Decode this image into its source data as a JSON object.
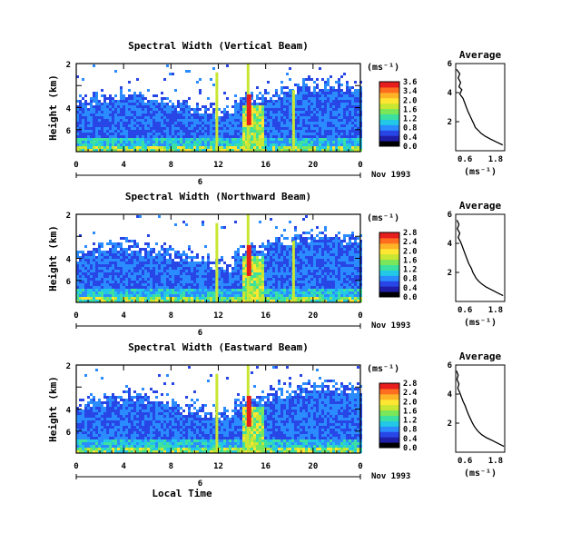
{
  "chart_data": [
    {
      "type": "heatmap",
      "title": "Spectral Width (Vertical Beam)",
      "ylabel": "Height (km)",
      "xlim": [
        0,
        24
      ],
      "ylim": [
        0,
        8
      ],
      "x_ticks": [
        "0",
        "4",
        "8",
        "12",
        "16",
        "20",
        "0"
      ],
      "y_ticks": [
        "2",
        "4",
        "6"
      ],
      "date_marker": "6",
      "date_label": "Nov 1993",
      "colorbar": {
        "unit": "(ms⁻¹)",
        "range": [
          0.0,
          3.6
        ],
        "ticks": [
          "3.6",
          "3.4",
          "2.0",
          "1.6",
          "1.2",
          "0.8",
          "0.4",
          "0.0"
        ]
      },
      "average_profile": {
        "title": "Average",
        "xlabel": "(ms⁻¹)",
        "xlim": [
          0.6,
          1.8
        ],
        "ylim": [
          0,
          6
        ],
        "x_ticks": [
          "0.6",
          "1.8"
        ],
        "y_ticks": [
          "2",
          "4",
          "6"
        ],
        "x": [
          0.62,
          0.7,
          0.66,
          0.72,
          0.68,
          0.75,
          0.7,
          0.78,
          0.82,
          0.86,
          0.9,
          0.95,
          1.0,
          1.05,
          1.08,
          1.15,
          1.22,
          1.32,
          1.45,
          1.6,
          1.75
        ],
        "y": [
          5.6,
          5.3,
          5.0,
          4.7,
          4.4,
          4.2,
          3.9,
          3.6,
          3.3,
          3.0,
          2.7,
          2.4,
          2.1,
          1.8,
          1.6,
          1.4,
          1.2,
          1.0,
          0.8,
          0.6,
          0.4
        ]
      }
    },
    {
      "type": "heatmap",
      "title": "Spectral Width (Northward Beam)",
      "ylabel": "Height (km)",
      "xlim": [
        0,
        24
      ],
      "ylim": [
        0,
        8
      ],
      "x_ticks": [
        "0",
        "4",
        "8",
        "12",
        "16",
        "20",
        "0"
      ],
      "y_ticks": [
        "2",
        "4",
        "6"
      ],
      "date_marker": "6",
      "date_label": "Nov 1993",
      "colorbar": {
        "unit": "(ms⁻¹)",
        "range": [
          0.0,
          2.8
        ],
        "ticks": [
          "2.8",
          "2.4",
          "2.0",
          "1.6",
          "1.2",
          "0.8",
          "0.4",
          "0.0"
        ]
      },
      "average_profile": {
        "title": "Average",
        "xlabel": "(ms⁻¹)",
        "xlim": [
          0.6,
          1.8
        ],
        "ylim": [
          0,
          6
        ],
        "x_ticks": [
          "0.6",
          "1.8"
        ],
        "y_ticks": [
          "2",
          "4",
          "6"
        ],
        "x": [
          0.63,
          0.68,
          0.64,
          0.7,
          0.66,
          0.72,
          0.76,
          0.8,
          0.84,
          0.88,
          0.92,
          0.98,
          1.02,
          1.06,
          1.1,
          1.16,
          1.24,
          1.34,
          1.48,
          1.62,
          1.76
        ],
        "y": [
          5.6,
          5.3,
          5.0,
          4.7,
          4.4,
          4.1,
          3.8,
          3.5,
          3.2,
          2.9,
          2.6,
          2.3,
          2.0,
          1.8,
          1.6,
          1.4,
          1.2,
          1.0,
          0.8,
          0.6,
          0.4
        ]
      }
    },
    {
      "type": "heatmap",
      "title": "Spectral Width (Eastward Beam)",
      "ylabel": "Height (km)",
      "xlim": [
        0,
        24
      ],
      "ylim": [
        0,
        8
      ],
      "x_ticks": [
        "0",
        "4",
        "8",
        "12",
        "16",
        "20",
        "0"
      ],
      "y_ticks": [
        "2",
        "4",
        "6"
      ],
      "date_marker": "6",
      "date_label": "Nov 1993",
      "xlabel": "Local Time",
      "colorbar": {
        "unit": "(ms⁻¹)",
        "range": [
          0.0,
          2.8
        ],
        "ticks": [
          "2.8",
          "2.4",
          "2.0",
          "1.6",
          "1.2",
          "0.8",
          "0.4",
          "0.0"
        ]
      },
      "average_profile": {
        "title": "Average",
        "xlabel": "(ms⁻¹)",
        "xlim": [
          0.6,
          1.8
        ],
        "ylim": [
          0,
          6
        ],
        "x_ticks": [
          "0.6",
          "1.8"
        ],
        "y_ticks": [
          "2",
          "4",
          "6"
        ],
        "x": [
          0.62,
          0.66,
          0.63,
          0.68,
          0.65,
          0.7,
          0.74,
          0.78,
          0.83,
          0.87,
          0.91,
          0.96,
          1.01,
          1.05,
          1.1,
          1.16,
          1.24,
          1.35,
          1.5,
          1.64,
          1.78
        ],
        "y": [
          5.6,
          5.3,
          5.0,
          4.7,
          4.4,
          4.1,
          3.8,
          3.5,
          3.2,
          2.9,
          2.6,
          2.3,
          2.0,
          1.8,
          1.6,
          1.4,
          1.2,
          1.0,
          0.8,
          0.6,
          0.4
        ]
      }
    }
  ],
  "colors": {
    "scale": [
      "#000000",
      "#1e1ea8",
      "#2846e6",
      "#2a8cff",
      "#22c8e6",
      "#3ce0a0",
      "#7ae65a",
      "#c8e632",
      "#ffe632",
      "#ffb428",
      "#ff6e1e",
      "#e61e1e"
    ]
  }
}
